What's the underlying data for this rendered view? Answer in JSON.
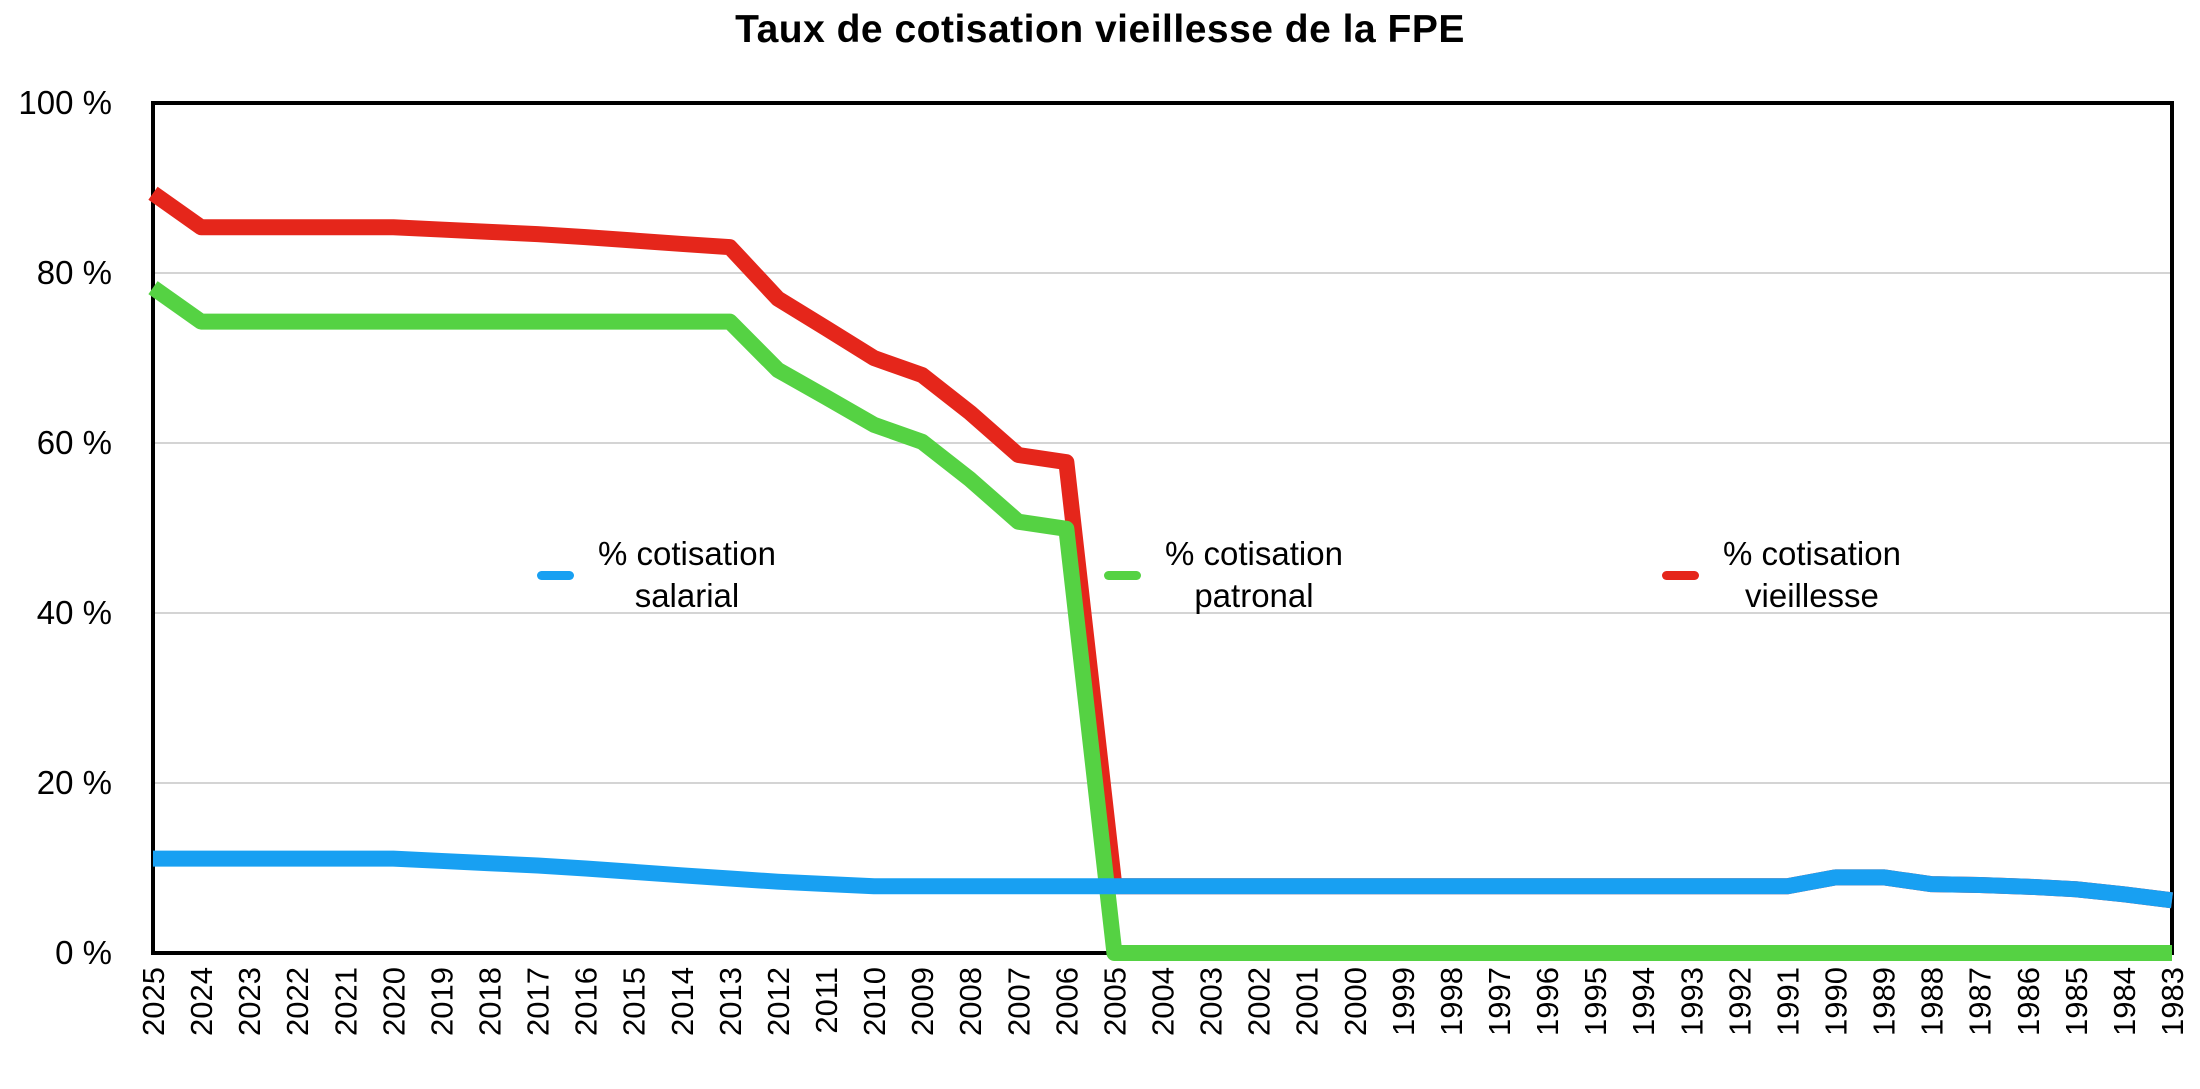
{
  "chart_data": {
    "type": "line",
    "title": "Taux de cotisation vieillesse de la FPE",
    "x_categories": [
      "2025",
      "2024",
      "2023",
      "2022",
      "2021",
      "2020",
      "2019",
      "2018",
      "2017",
      "2016",
      "2015",
      "2014",
      "2013",
      "2012",
      "2011",
      "2010",
      "2009",
      "2008",
      "2007",
      "2006",
      "2005",
      "2004",
      "2003",
      "2002",
      "2001",
      "2000",
      "1999",
      "1998",
      "1997",
      "1996",
      "1995",
      "1994",
      "1993",
      "1992",
      "1991",
      "1990",
      "1989",
      "1988",
      "1987",
      "1986",
      "1985",
      "1984",
      "1983"
    ],
    "ylim": [
      0,
      100
    ],
    "yticks": [
      {
        "value": 0,
        "label": "0 %"
      },
      {
        "value": 20,
        "label": "20 %"
      },
      {
        "value": 40,
        "label": "40 %"
      },
      {
        "value": 60,
        "label": "60 %"
      },
      {
        "value": 80,
        "label": "80 %"
      },
      {
        "value": 100,
        "label": "100 %"
      }
    ],
    "gridlines_at": [
      20,
      40,
      60,
      80
    ],
    "grid": "horizontal light-gray lines, black plot border",
    "legend_position": "inside plot area, mid-height",
    "legend": [
      {
        "id": "salarial",
        "lines": [
          "% cotisation",
          "salarial"
        ],
        "color": "#18a0f2"
      },
      {
        "id": "patronal",
        "lines": [
          "% cotisation",
          "patronal"
        ],
        "color": "#55d243"
      },
      {
        "id": "vieillesse",
        "lines": [
          "% cotisation",
          "vieillesse"
        ],
        "color": "#e5261b"
      }
    ],
    "series": [
      {
        "id": "salarial",
        "name": "% cotisation salarial",
        "color": "#18a0f2",
        "values": [
          11.1,
          11.1,
          11.1,
          11.1,
          11.1,
          11.1,
          10.83,
          10.56,
          10.29,
          9.94,
          9.54,
          9.14,
          8.76,
          8.39,
          8.12,
          7.85,
          7.85,
          7.85,
          7.85,
          7.85,
          7.85,
          7.85,
          7.85,
          7.85,
          7.85,
          7.85,
          7.85,
          7.85,
          7.85,
          7.85,
          7.85,
          7.85,
          7.85,
          7.85,
          7.85,
          8.9,
          8.9,
          8.1,
          8.0,
          7.8,
          7.5,
          6.9,
          6.2
        ]
      },
      {
        "id": "patronal",
        "name": "% cotisation patronal",
        "color": "#55d243",
        "values": [
          78.28,
          74.28,
          74.28,
          74.28,
          74.28,
          74.28,
          74.28,
          74.28,
          74.28,
          74.28,
          74.28,
          74.28,
          74.28,
          68.59,
          65.39,
          62.14,
          60.14,
          55.71,
          50.74,
          49.9,
          0,
          0,
          0,
          0,
          0,
          0,
          0,
          0,
          0,
          0,
          0,
          0,
          0,
          0,
          0,
          0,
          0,
          0,
          0,
          0,
          0,
          0,
          0
        ]
      },
      {
        "id": "vieillesse",
        "name": "% cotisation vieillesse",
        "color": "#e5261b",
        "values": [
          89.38,
          85.38,
          85.38,
          85.38,
          85.38,
          85.38,
          85.11,
          84.84,
          84.57,
          84.22,
          83.82,
          83.42,
          83.04,
          76.98,
          73.51,
          69.99,
          67.99,
          63.56,
          58.59,
          57.75,
          7.85,
          7.85,
          7.85,
          7.85,
          7.85,
          7.85,
          7.85,
          7.85,
          7.85,
          7.85,
          7.85,
          7.85,
          7.85,
          7.85,
          7.85,
          8.9,
          8.9,
          8.1,
          8.0,
          7.8,
          7.5,
          6.9,
          6.2
        ]
      }
    ]
  },
  "colors": {
    "background": "#ffffff",
    "grid": "#d4d4d4",
    "axis": "#000000",
    "text": "#000000"
  }
}
